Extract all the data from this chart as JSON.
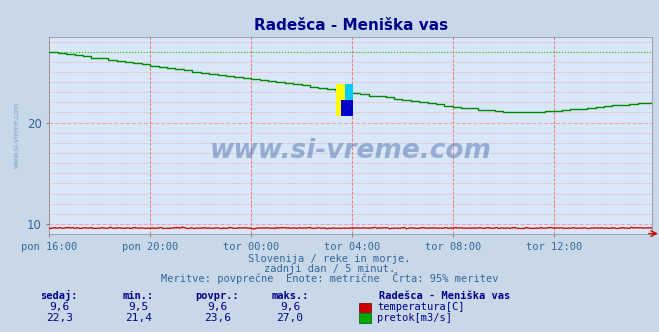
{
  "title": "Radešca - Meniška vas",
  "title_color": "#00008b",
  "bg_color": "#c8d8e8",
  "plot_bg_color": "#d8e8f8",
  "grid_color_v": "#ff4444",
  "grid_color_h": "#ff8888",
  "xlabel_ticks": [
    "pon 16:00",
    "pon 20:00",
    "tor 00:00",
    "tor 04:00",
    "tor 08:00",
    "tor 12:00"
  ],
  "ylim": [
    9.0,
    28.5
  ],
  "xlim": [
    0,
    287
  ],
  "pretok_color": "#008800",
  "pretok_dotted_color": "#00cc00",
  "temp_color": "#cc0000",
  "temp_dotted_color": "#ff4444",
  "watermark": "www.si-vreme.com",
  "watermark_color": "#4466aa",
  "watermark_alpha": 0.45,
  "side_text": "www.si-vreme.com",
  "side_text_color": "#6688bb",
  "subtitle1": "Slovenija / reke in morje.",
  "subtitle2": "zadnji dan / 5 minut.",
  "subtitle3": "Meritve: povprečne  Enote: metrične  Črta: 95% meritev",
  "subtitle_color": "#336699",
  "legend_title": "Radešca - Meniška vas",
  "legend_color": "#000088",
  "table_headers": [
    "sedaj:",
    "min.:",
    "povpr.:",
    "maks.:"
  ],
  "temp_row": [
    "9,6",
    "9,5",
    "9,6",
    "9,6"
  ],
  "pretok_row": [
    "22,3",
    "21,4",
    "23,6",
    "27,0"
  ],
  "table_color": "#000088",
  "tick_color": "#336699"
}
